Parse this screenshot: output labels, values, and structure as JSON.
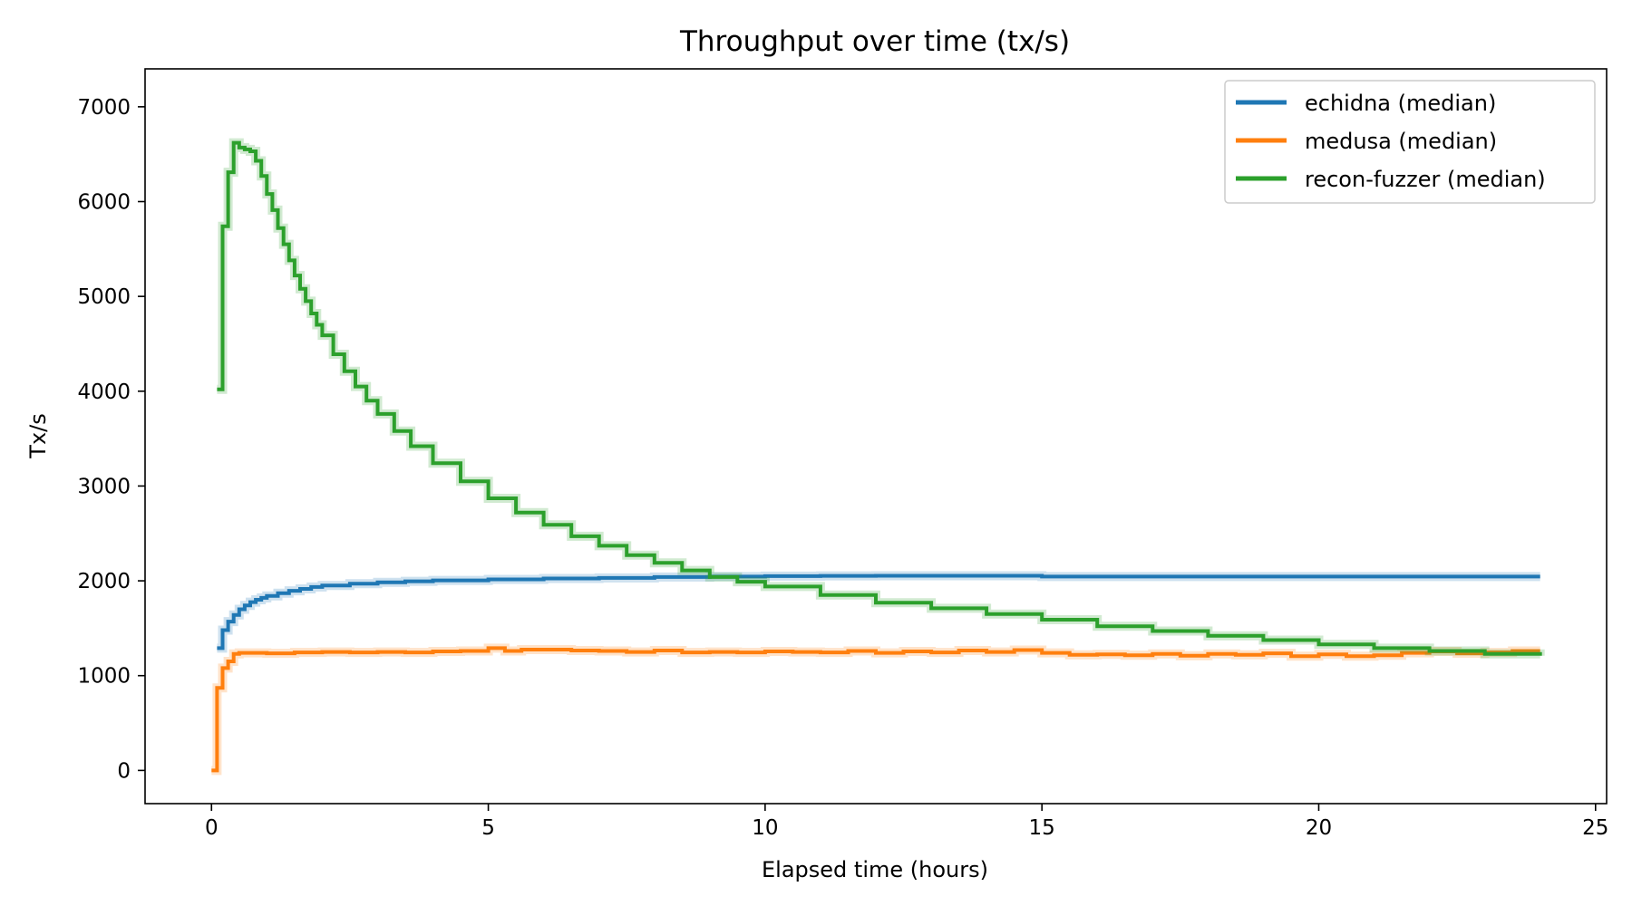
{
  "chart_data": {
    "type": "line",
    "title": "Throughput over time (tx/s)",
    "xlabel": "Elapsed time (hours)",
    "ylabel": "Tx/s",
    "xlim": [
      -1.2,
      25.2
    ],
    "ylim": [
      -350,
      7400
    ],
    "xticks": [
      0,
      5,
      10,
      15,
      20,
      25
    ],
    "yticks": [
      0,
      1000,
      2000,
      3000,
      4000,
      5000,
      6000,
      7000
    ],
    "grid": false,
    "legend_position": "top-right",
    "step": true,
    "series": [
      {
        "name": "echidna (median)",
        "color": "#1f77b4",
        "x": [
          0.1,
          0.2,
          0.3,
          0.4,
          0.5,
          0.6,
          0.7,
          0.8,
          0.9,
          1.0,
          1.2,
          1.4,
          1.6,
          1.8,
          2.0,
          2.5,
          3.0,
          3.5,
          4.0,
          5.0,
          6.0,
          7.0,
          8.0,
          9.0,
          10.0,
          11.0,
          12.0,
          13.0,
          14.0,
          14.6,
          15.0,
          16.0,
          18.0,
          20.0,
          22.0,
          24.0
        ],
        "values": [
          1290,
          1480,
          1570,
          1640,
          1700,
          1740,
          1775,
          1800,
          1820,
          1840,
          1870,
          1895,
          1915,
          1935,
          1950,
          1970,
          1985,
          1995,
          2005,
          2015,
          2025,
          2030,
          2040,
          2045,
          2050,
          2052,
          2053,
          2053,
          2053,
          2053,
          2045,
          2045,
          2045,
          2045,
          2045,
          2045
        ]
      },
      {
        "name": "medusa (median)",
        "color": "#ff7f0e",
        "x": [
          0.0,
          0.1,
          0.2,
          0.3,
          0.4,
          0.5,
          0.8,
          1.0,
          1.5,
          2.0,
          2.5,
          3.0,
          3.5,
          4.0,
          4.5,
          5.0,
          5.3,
          5.6,
          6.0,
          6.5,
          7.0,
          7.5,
          8.0,
          8.5,
          9.0,
          9.5,
          10.0,
          10.5,
          11.0,
          11.5,
          12.0,
          12.5,
          13.0,
          13.5,
          14.0,
          14.5,
          15.0,
          15.5,
          16.0,
          16.5,
          17.0,
          17.5,
          18.0,
          18.5,
          19.0,
          19.5,
          20.0,
          20.5,
          21.0,
          21.5,
          22.0,
          22.5,
          23.0,
          23.5,
          24.0
        ],
        "values": [
          0,
          870,
          1080,
          1150,
          1230,
          1240,
          1240,
          1235,
          1245,
          1250,
          1245,
          1250,
          1245,
          1255,
          1260,
          1290,
          1260,
          1275,
          1275,
          1265,
          1260,
          1250,
          1265,
          1245,
          1250,
          1245,
          1255,
          1250,
          1245,
          1260,
          1240,
          1255,
          1245,
          1265,
          1250,
          1270,
          1240,
          1220,
          1225,
          1215,
          1230,
          1210,
          1230,
          1220,
          1235,
          1205,
          1225,
          1205,
          1215,
          1240,
          1255,
          1235,
          1245,
          1260,
          1260
        ]
      },
      {
        "name": "recon-fuzzer (median)",
        "color": "#2ca02c",
        "x": [
          0.1,
          0.2,
          0.3,
          0.4,
          0.5,
          0.6,
          0.7,
          0.8,
          0.9,
          1.0,
          1.1,
          1.2,
          1.3,
          1.4,
          1.5,
          1.6,
          1.7,
          1.8,
          1.9,
          2.0,
          2.2,
          2.4,
          2.6,
          2.8,
          3.0,
          3.3,
          3.6,
          4.0,
          4.5,
          5.0,
          5.5,
          6.0,
          6.5,
          7.0,
          7.5,
          8.0,
          8.5,
          9.0,
          9.5,
          10.0,
          11.0,
          12.0,
          13.0,
          14.0,
          15.0,
          16.0,
          17.0,
          18.0,
          19.0,
          20.0,
          21.0,
          22.0,
          23.0,
          24.0
        ],
        "values": [
          4020,
          5740,
          6310,
          6620,
          6570,
          6550,
          6530,
          6430,
          6270,
          6080,
          5910,
          5720,
          5550,
          5380,
          5220,
          5080,
          4950,
          4820,
          4700,
          4590,
          4390,
          4210,
          4050,
          3900,
          3760,
          3580,
          3420,
          3240,
          3050,
          2870,
          2720,
          2590,
          2470,
          2370,
          2270,
          2190,
          2110,
          2040,
          1990,
          1940,
          1850,
          1770,
          1710,
          1650,
          1590,
          1520,
          1470,
          1420,
          1375,
          1330,
          1290,
          1260,
          1230,
          1210
        ]
      }
    ]
  }
}
